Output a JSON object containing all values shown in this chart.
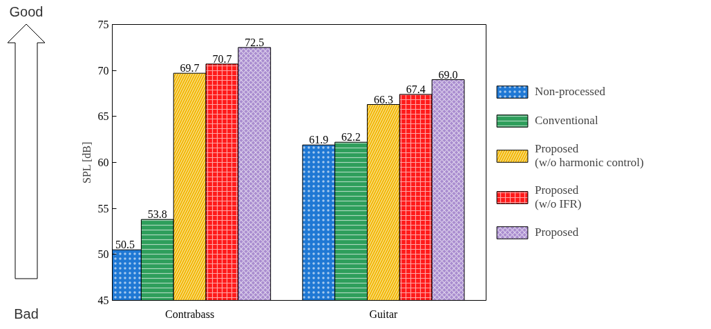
{
  "chart_data": {
    "type": "bar",
    "ylabel": "SPL [dB]",
    "categories": [
      "Contrabass",
      "Guitar"
    ],
    "series": [
      {
        "name": "Non-processed",
        "color": "#1f78d4",
        "values": [
          50.5,
          61.9
        ],
        "value_labels": [
          "50.5",
          "61.9"
        ]
      },
      {
        "name": "Conventional",
        "color": "#2e9e5b",
        "values": [
          53.8,
          62.2
        ],
        "value_labels": [
          "53.8",
          "62.2"
        ]
      },
      {
        "name": "Proposed\n(w/o harmonic control)",
        "color": "#f2b600",
        "values": [
          69.7,
          66.3
        ],
        "value_labels": [
          "69.7",
          "66.3"
        ]
      },
      {
        "name": "Proposed\n(w/o IFR)",
        "color": "#ff1a1a",
        "values": [
          70.7,
          67.4
        ],
        "value_labels": [
          "70.7",
          "67.4"
        ]
      },
      {
        "name": "Proposed",
        "color": "#a98ccf",
        "values": [
          72.5,
          69.0
        ],
        "value_labels": [
          "72.5",
          "69.0"
        ]
      }
    ],
    "ylim": [
      45,
      75
    ],
    "yticks": [
      45,
      50,
      55,
      60,
      65,
      70,
      75
    ],
    "grid": false,
    "legend": "right",
    "annotations": [
      "Good",
      "Bad"
    ]
  }
}
